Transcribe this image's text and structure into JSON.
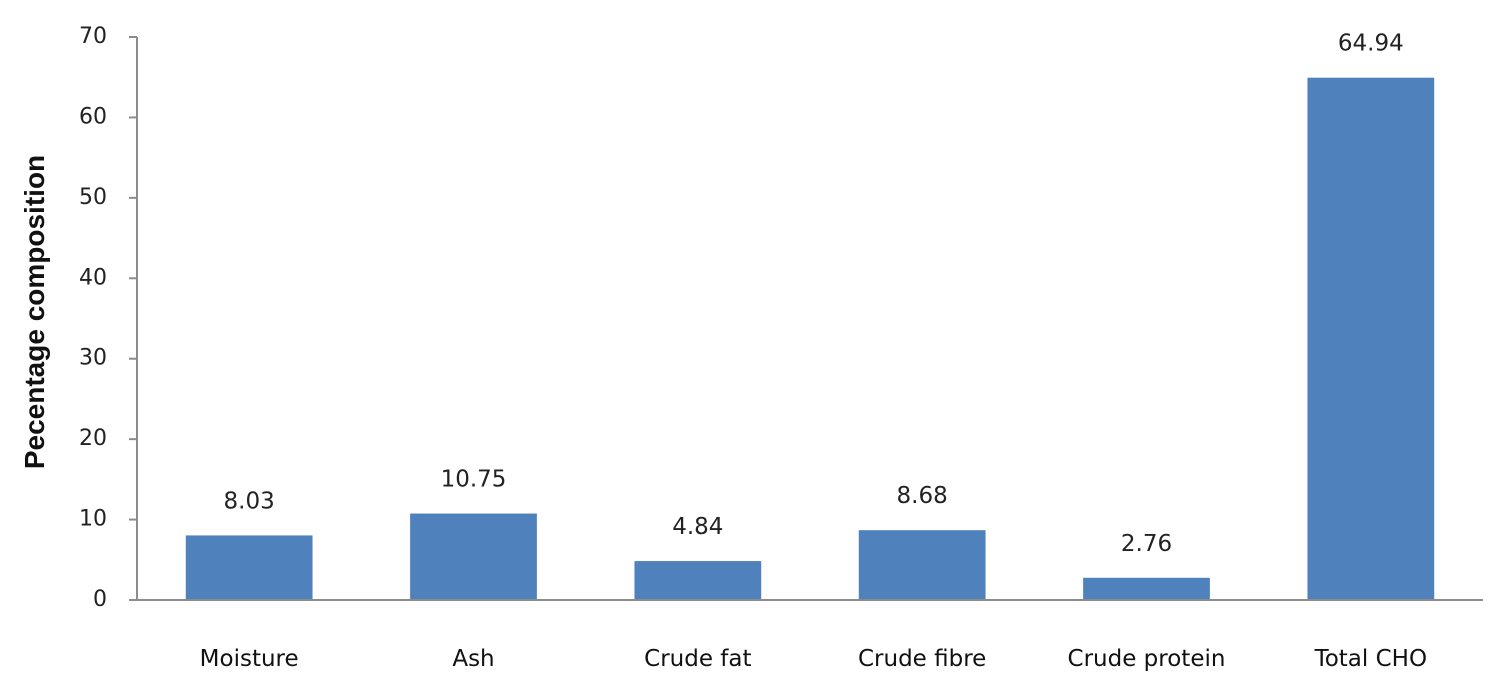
{
  "chart_data": {
    "type": "bar",
    "categories": [
      "Moisture",
      "Ash",
      "Crude fat",
      "Crude fibre",
      "Crude protein",
      "Total CHO"
    ],
    "values": [
      8.03,
      10.75,
      4.84,
      8.68,
      2.76,
      64.94
    ],
    "value_labels": [
      "8.03",
      "10.75",
      "4.84",
      "8.68",
      "2.76",
      "64.94"
    ],
    "title": "",
    "xlabel": "",
    "ylabel": "Pecentage composition",
    "ylim": [
      0,
      70
    ],
    "yticks": [
      0,
      10,
      20,
      30,
      40,
      50,
      60,
      70
    ],
    "grid": false,
    "legend": "none",
    "bar_color": "#4f81bd"
  }
}
